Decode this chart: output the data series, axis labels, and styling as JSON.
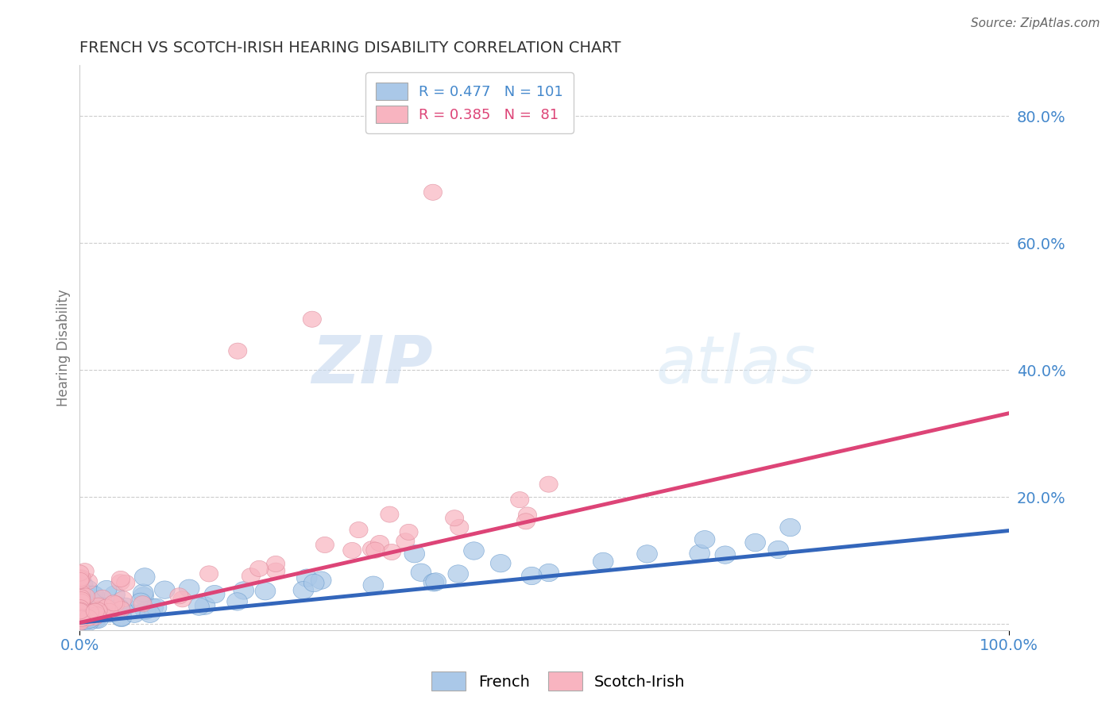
{
  "title": "FRENCH VS SCOTCH-IRISH HEARING DISABILITY CORRELATION CHART",
  "source": "Source: ZipAtlas.com",
  "ylabel": "Hearing Disability",
  "xlim": [
    0.0,
    1.0
  ],
  "ylim": [
    -0.01,
    0.88
  ],
  "yticks": [
    0.0,
    0.2,
    0.4,
    0.6,
    0.8
  ],
  "ytick_labels": [
    "",
    "20.0%",
    "40.0%",
    "60.0%",
    "80.0%"
  ],
  "xtick_labels": [
    "0.0%",
    "100.0%"
  ],
  "french_R": 0.477,
  "french_N": 101,
  "scotch_R": 0.385,
  "scotch_N": 81,
  "french_color": "#aac8e8",
  "scotch_color": "#f8b4c0",
  "french_edge_color": "#6699cc",
  "scotch_edge_color": "#dd8899",
  "french_line_color": "#3366bb",
  "scotch_line_color": "#dd4477",
  "title_color": "#333333",
  "axis_label_color": "#4488cc",
  "background_color": "#ffffff",
  "grid_color": "#cccccc",
  "watermark_zip": "ZIP",
  "watermark_atlas": "atlas",
  "french_slope": 0.145,
  "french_intercept": 0.002,
  "scotch_slope": 0.33,
  "scotch_intercept": 0.002
}
